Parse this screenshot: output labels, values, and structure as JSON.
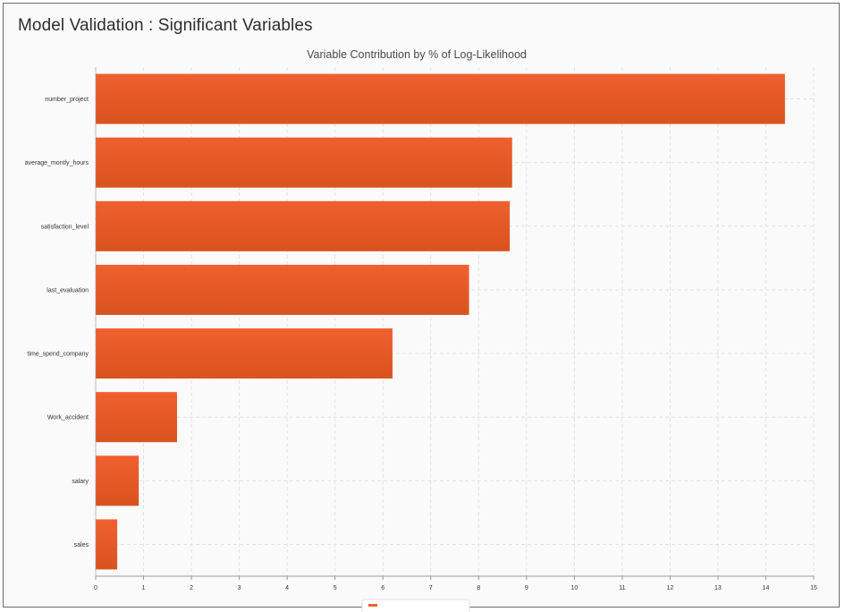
{
  "page": {
    "title": "Model Validation : Significant Variables"
  },
  "chart_data": {
    "type": "bar",
    "orientation": "horizontal",
    "title": "Variable Contribution by % of Log-Likelihood",
    "xlabel": "",
    "ylabel": "",
    "categories": [
      "number_project",
      "average_montly_hours",
      "satisfaction_level",
      "last_evaluation",
      "time_spend_company",
      "Work_accident",
      "salary",
      "sales"
    ],
    "values": [
      14.4,
      8.7,
      8.65,
      7.8,
      6.2,
      1.7,
      0.9,
      0.45
    ],
    "xlim": [
      0,
      15
    ],
    "x_ticks": [
      0,
      1,
      2,
      3,
      4,
      5,
      6,
      7,
      8,
      9,
      10,
      11,
      12,
      13,
      14,
      15
    ],
    "grid": true,
    "legend": "bottom",
    "colors": {
      "bar": "#f0602e",
      "bar_edge": "#d9531f",
      "grid": "#dcdcdc",
      "axis": "#999999"
    }
  }
}
